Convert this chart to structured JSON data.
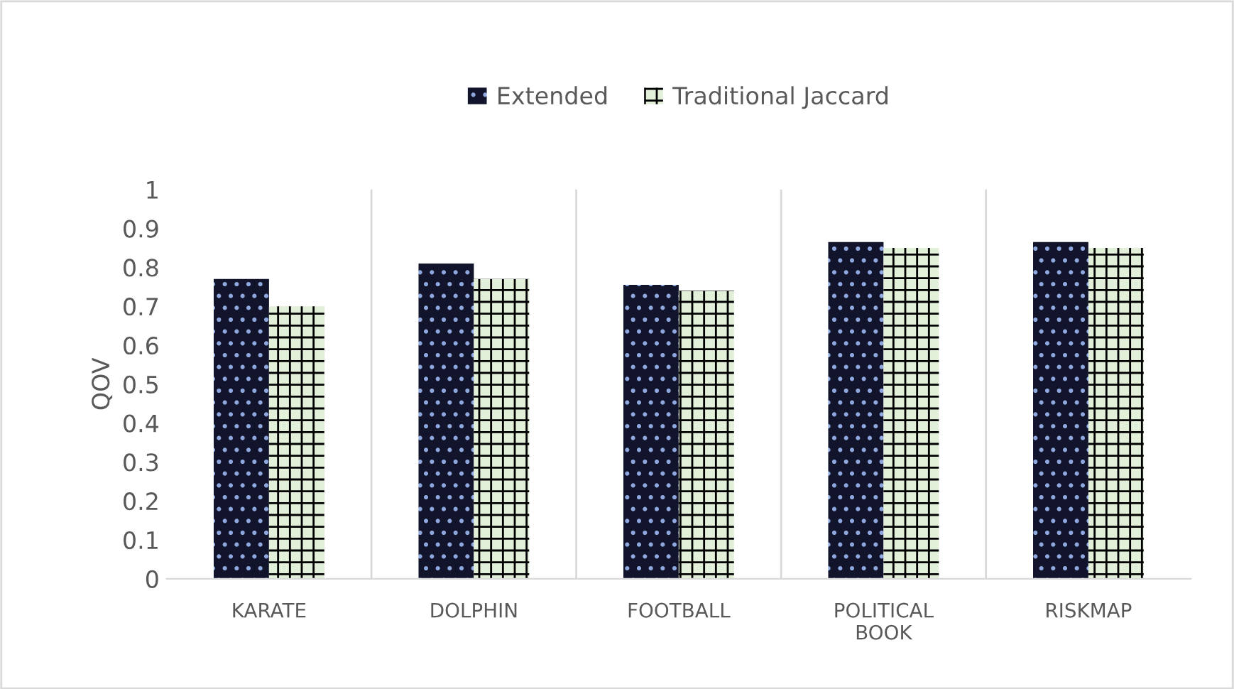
{
  "chart_data": {
    "type": "bar",
    "ylabel": "QOV",
    "categories": [
      "KARATE",
      "DOLPHIN",
      "FOOTBALL",
      "POLITICAL BOOK",
      "RISKMAP"
    ],
    "series": [
      {
        "name": "Extended",
        "color": "#11142a",
        "values": [
          0.77,
          0.81,
          0.755,
          0.865,
          0.865
        ]
      },
      {
        "name": "Traditional Jaccard",
        "color": "#e2efd9",
        "values": [
          0.7,
          0.77,
          0.74,
          0.85,
          0.85
        ]
      }
    ],
    "ylim": [
      0,
      1
    ],
    "yticks": [
      0,
      0.1,
      0.2,
      0.3,
      0.4,
      0.5,
      0.6,
      0.7,
      0.8,
      0.9,
      1
    ],
    "grid": "x",
    "legend": "top"
  }
}
